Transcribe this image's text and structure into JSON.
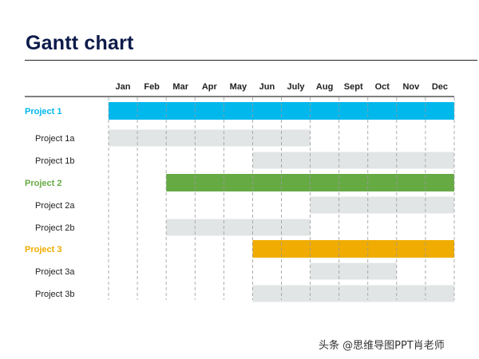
{
  "page": {
    "title": "Gantt chart",
    "watermark": "头条 @思维导图PPT肖老师"
  },
  "colors": {
    "title": "#0d1b4a",
    "subtask_bar": "#e2e5e6",
    "project1": "#00b8ec",
    "project2": "#66aa44",
    "project3": "#f0ac00",
    "grid": "#9a9a9a",
    "label": "#222222"
  },
  "chart_data": {
    "type": "gantt",
    "months": [
      "Jan",
      "Feb",
      "Mar",
      "Apr",
      "May",
      "Jun",
      "July",
      "Aug",
      "Sept",
      "Oct",
      "Nov",
      "Dec"
    ],
    "grid": "dashed vertical month dividers",
    "tasks": [
      {
        "name": "Project 1",
        "level": "project",
        "color": "#00b8ec",
        "start": 1,
        "end": 12
      },
      {
        "name": "Project 1a",
        "level": "subtask",
        "start": 1,
        "end": 7
      },
      {
        "name": "Project 1b",
        "level": "subtask",
        "start": 6,
        "end": 12
      },
      {
        "name": "Project 2",
        "level": "project",
        "color": "#66aa44",
        "start": 3,
        "end": 12
      },
      {
        "name": "Project 2a",
        "level": "subtask",
        "start": 8,
        "end": 12
      },
      {
        "name": "Project 2b",
        "level": "subtask",
        "start": 3,
        "end": 7
      },
      {
        "name": "Project 3",
        "level": "project",
        "color": "#f0ac00",
        "start": 6,
        "end": 12
      },
      {
        "name": "Project 3a",
        "level": "subtask",
        "start": 8,
        "end": 10
      },
      {
        "name": "Project 3b",
        "level": "subtask",
        "start": 6,
        "end": 12
      }
    ]
  }
}
